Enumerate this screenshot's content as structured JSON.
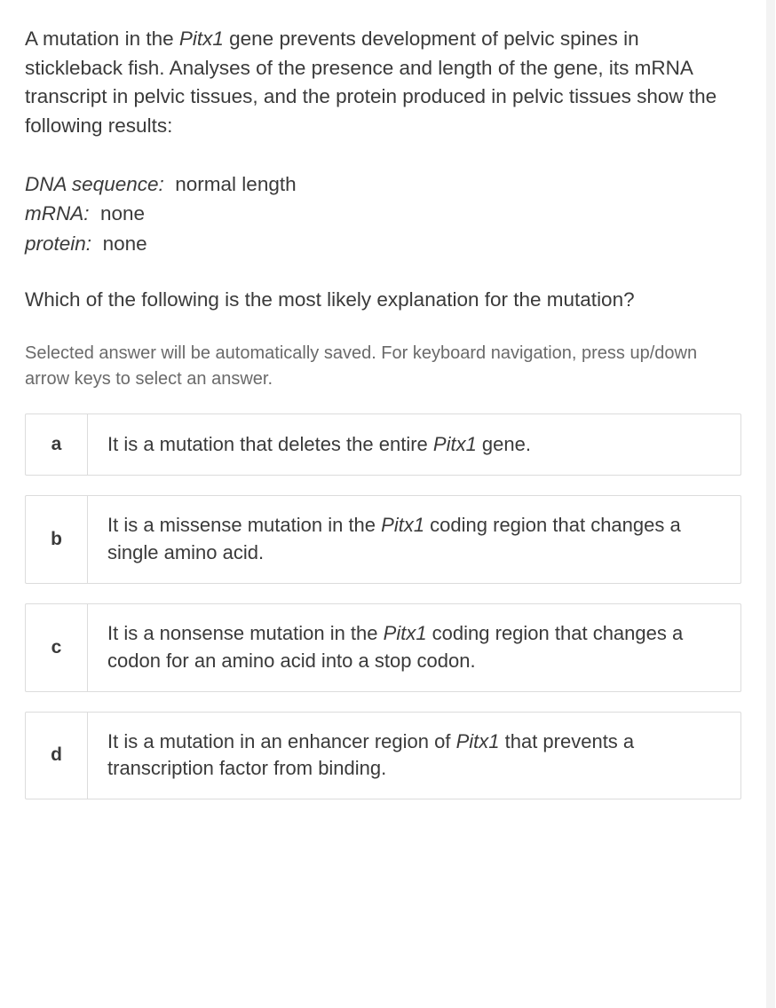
{
  "question": {
    "stem_pre": "A mutation in the ",
    "gene": "Pitx1",
    "stem_post": " gene prevents development of pelvic spines in stickleback fish. Analyses of the presence and length of the gene, its mRNA transcript in pelvic tissues, and the protein produced in pelvic tissues show the following results:",
    "data": [
      {
        "label": "DNA sequence:",
        "value": "normal length"
      },
      {
        "label": "mRNA:",
        "value": "none"
      },
      {
        "label": "protein:",
        "value": "none"
      }
    ],
    "prompt": "Which of the following is the most likely explanation for the mutation?"
  },
  "instructions": "Selected answer will be automatically saved. For keyboard navigation, press up/down arrow keys to select an answer.",
  "options": [
    {
      "key": "a",
      "pre": "It is a mutation that deletes the entire ",
      "gene": "Pitx1",
      "post": " gene."
    },
    {
      "key": "b",
      "pre": "It is a missense mutation in the ",
      "gene": "Pitx1",
      "post": " coding region that changes a single amino acid."
    },
    {
      "key": "c",
      "pre": "It is a nonsense mutation in the ",
      "gene": "Pitx1",
      "post": " coding region that changes a codon for an amino acid into a stop codon."
    },
    {
      "key": "d",
      "pre": "It is a mutation in an enhancer region of ",
      "gene": "Pitx1",
      "post": " that prevents a transcription factor from binding."
    }
  ],
  "style": {
    "text_color": "#3a3a3a",
    "muted_color": "#6a6a6a",
    "border_color": "#dcdcdc",
    "background": "#ffffff",
    "body_fontsize": 22.5,
    "instructions_fontsize": 20,
    "option_fontsize": 22
  }
}
